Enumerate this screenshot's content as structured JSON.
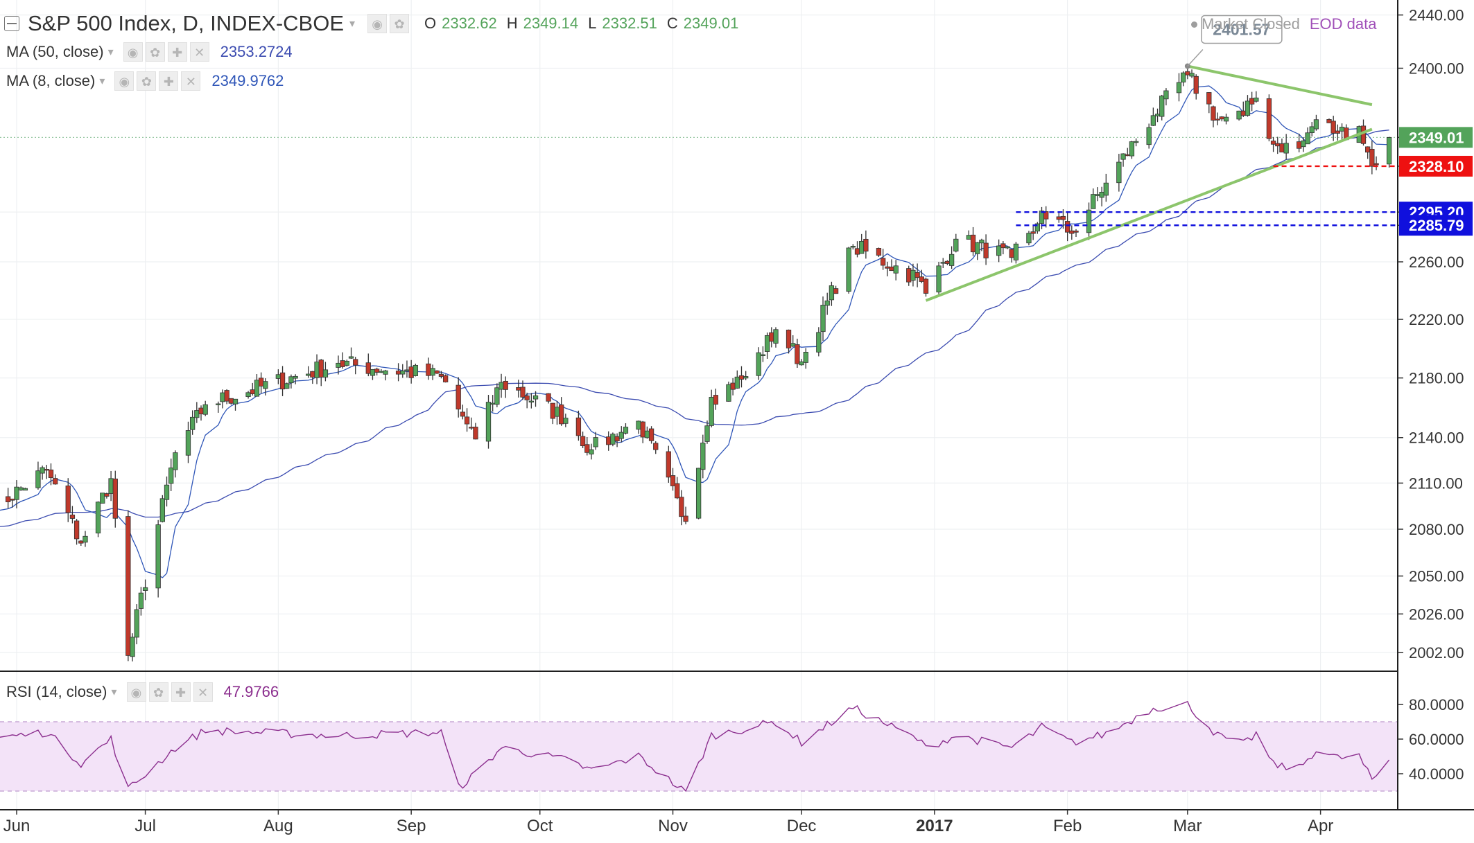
{
  "header": {
    "title": "S&P 500 Index, D, INDEX-CBOE",
    "ohlc": [
      {
        "k": "O",
        "v": "2332.62"
      },
      {
        "k": "H",
        "v": "2349.14"
      },
      {
        "k": "L",
        "v": "2332.51"
      },
      {
        "k": "C",
        "v": "2349.01"
      }
    ],
    "market_status": "Market Closed",
    "data_type": "EOD data"
  },
  "indicators": {
    "ma50": {
      "label": "MA (50, close)",
      "value": "2353.2724",
      "color": "#3b4bb0"
    },
    "ma8": {
      "label": "MA (8, close)",
      "value": "2349.9762",
      "color": "#2f56b8"
    },
    "rsi": {
      "label": "RSI (14, close)",
      "value": "47.9766",
      "color": "#8b2e8e"
    }
  },
  "icons": {
    "settings": [
      "eye-icon",
      "gear-icon",
      "plus-icon",
      "close-icon"
    ]
  },
  "colors": {
    "up": "#53a35a",
    "down": "#c0392b",
    "trendline": "#8cc56b",
    "support_red": "#ee1111",
    "support_blue": "#1010dd",
    "rsi_band": "#f3e3f8",
    "ohlc_value": "#53a35a",
    "status_grey": "#9e9e9e",
    "eod_purple": "#a050b8"
  },
  "chart_data": {
    "type": "candlestick",
    "price_axis_ticks": [
      "2440.00",
      "2400.00",
      "2349.01",
      "2328.10",
      "2295.20",
      "2285.79",
      "2260.00",
      "2220.00",
      "2180.00",
      "2140.00",
      "2110.00",
      "2080.00",
      "2050.00",
      "2026.00",
      "2002.00"
    ],
    "x_labels": [
      "Jun",
      "Jul",
      "Aug",
      "Sep",
      "Oct",
      "Nov",
      "Dec",
      "2017",
      "Feb",
      "Mar",
      "Apr"
    ],
    "price_labels": {
      "last": "2349.01",
      "support1": "2328.10",
      "support2": "2295.20",
      "support3": "2285.79",
      "peak": "2401.57"
    },
    "rsi_axis_ticks": [
      "80.0000",
      "60.0000",
      "40.0000"
    ],
    "rsi_band": [
      30,
      70
    ],
    "trendlines": [
      {
        "from": [
          "2017-03-01",
          2401.57
        ],
        "to": [
          "2017-04-13",
          2373
        ]
      },
      {
        "from": [
          "2016-12-30",
          2233
        ],
        "to": [
          "2017-04-13",
          2355
        ]
      }
    ],
    "support_lines": [
      {
        "label": "2328.10",
        "from": "2017-03-21",
        "value": 2328.1
      },
      {
        "label": "2295.20",
        "from": "2017-01-20",
        "value": 2295.2
      },
      {
        "label": "2285.79",
        "from": "2017-01-20",
        "value": 2285.79
      }
    ],
    "anchors": [
      [
        "2016-05-25",
        2090
      ],
      [
        "2016-06-08",
        2119
      ],
      [
        "2016-06-16",
        2071
      ],
      [
        "2016-06-23",
        2113
      ],
      [
        "2016-06-27",
        2000
      ],
      [
        "2016-07-08",
        2130
      ],
      [
        "2016-07-15",
        2162
      ],
      [
        "2016-08-15",
        2190
      ],
      [
        "2016-09-08",
        2181
      ],
      [
        "2016-09-12",
        2159
      ],
      [
        "2016-09-16",
        2139
      ],
      [
        "2016-09-22",
        2177
      ],
      [
        "2016-10-07",
        2153
      ],
      [
        "2016-10-13",
        2132
      ],
      [
        "2016-10-24",
        2151
      ],
      [
        "2016-11-04",
        2085
      ],
      [
        "2016-11-10",
        2167
      ],
      [
        "2016-11-18",
        2181
      ],
      [
        "2016-11-25",
        2213
      ],
      [
        "2016-12-01",
        2191
      ],
      [
        "2016-12-13",
        2271
      ],
      [
        "2016-12-28",
        2249
      ],
      [
        "2016-12-30",
        2238
      ],
      [
        "2017-01-06",
        2276
      ],
      [
        "2017-01-19",
        2263
      ],
      [
        "2017-01-24",
        2280
      ],
      [
        "2017-01-26",
        2296
      ],
      [
        "2017-02-02",
        2280
      ],
      [
        "2017-02-10",
        2316
      ],
      [
        "2017-02-21",
        2365
      ],
      [
        "2017-03-01",
        2395
      ],
      [
        "2017-03-08",
        2362
      ],
      [
        "2017-03-14",
        2365
      ],
      [
        "2017-03-17",
        2378
      ],
      [
        "2017-03-21",
        2344
      ],
      [
        "2017-03-27",
        2341
      ],
      [
        "2017-03-31",
        2362
      ],
      [
        "2017-04-05",
        2352
      ],
      [
        "2017-04-10",
        2357
      ],
      [
        "2017-04-13",
        2328
      ],
      [
        "2017-04-17",
        2349.01
      ]
    ],
    "rsi_anchors": [
      [
        "2016-05-25",
        60
      ],
      [
        "2016-06-08",
        64
      ],
      [
        "2016-06-16",
        46
      ],
      [
        "2016-06-23",
        60
      ],
      [
        "2016-06-27",
        31
      ],
      [
        "2016-07-08",
        55
      ],
      [
        "2016-07-15",
        65
      ],
      [
        "2016-08-15",
        62
      ],
      [
        "2016-09-08",
        64
      ],
      [
        "2016-09-12",
        32
      ],
      [
        "2016-09-16",
        40
      ],
      [
        "2016-09-22",
        55
      ],
      [
        "2016-10-07",
        48
      ],
      [
        "2016-10-13",
        42
      ],
      [
        "2016-10-24",
        50
      ],
      [
        "2016-11-04",
        29
      ],
      [
        "2016-11-10",
        62
      ],
      [
        "2016-11-18",
        66
      ],
      [
        "2016-11-25",
        70
      ],
      [
        "2016-12-01",
        58
      ],
      [
        "2016-12-13",
        78
      ],
      [
        "2016-12-28",
        60
      ],
      [
        "2016-12-30",
        55
      ],
      [
        "2017-01-06",
        62
      ],
      [
        "2017-01-19",
        55
      ],
      [
        "2017-01-24",
        63
      ],
      [
        "2017-01-26",
        67
      ],
      [
        "2017-02-02",
        58
      ],
      [
        "2017-02-10",
        63
      ],
      [
        "2017-02-21",
        78
      ],
      [
        "2017-03-01",
        80
      ],
      [
        "2017-03-08",
        62
      ],
      [
        "2017-03-14",
        57
      ],
      [
        "2017-03-17",
        63
      ],
      [
        "2017-03-21",
        45
      ],
      [
        "2017-03-27",
        43
      ],
      [
        "2017-03-31",
        54
      ],
      [
        "2017-04-05",
        49
      ],
      [
        "2017-04-10",
        50
      ],
      [
        "2017-04-13",
        36
      ],
      [
        "2017-04-17",
        47.9766
      ]
    ]
  }
}
